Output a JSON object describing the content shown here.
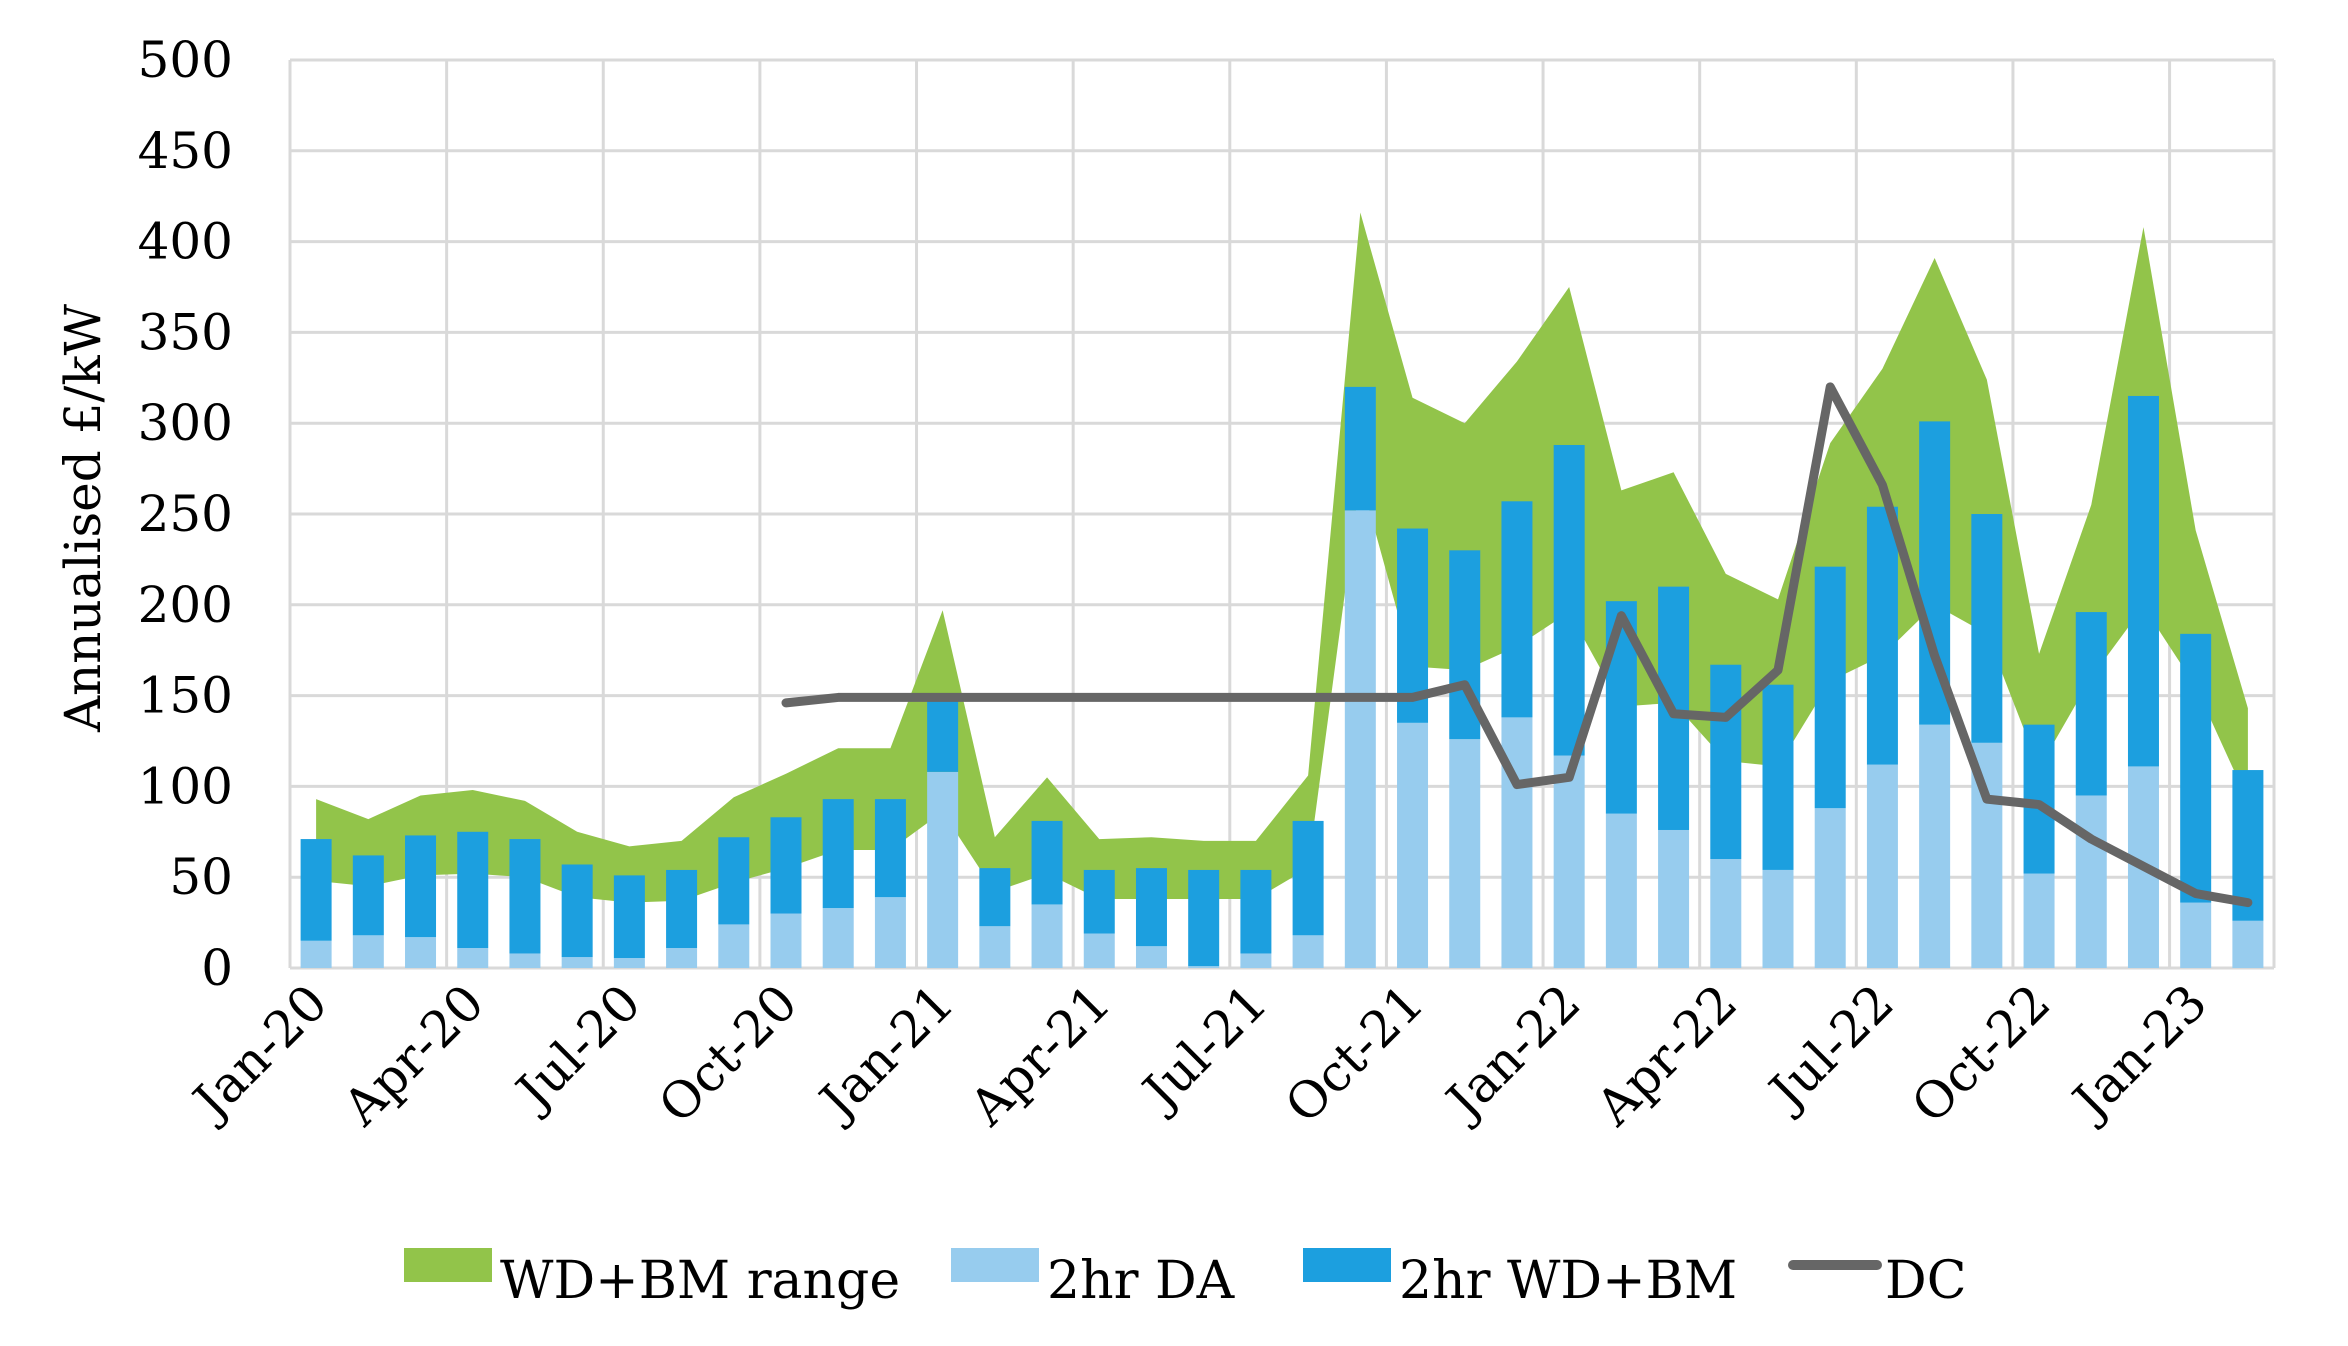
{
  "chart_data": {
    "type": "bar",
    "subtype": "stacked-bar-with-area-range-and-line",
    "title": "",
    "xlabel": "",
    "ylabel": "Annualised £/kW",
    "ylim": [
      0,
      500
    ],
    "yticks": [
      0,
      50,
      100,
      150,
      200,
      250,
      300,
      350,
      400,
      450,
      500
    ],
    "grid": true,
    "legend_position": "bottom",
    "categories": [
      "Jan-20",
      "Feb-20",
      "Mar-20",
      "Apr-20",
      "May-20",
      "Jun-20",
      "Jul-20",
      "Aug-20",
      "Sep-20",
      "Oct-20",
      "Nov-20",
      "Dec-20",
      "Jan-21",
      "Feb-21",
      "Mar-21",
      "Apr-21",
      "May-21",
      "Jun-21",
      "Jul-21",
      "Aug-21",
      "Sep-21",
      "Oct-21",
      "Nov-21",
      "Dec-21",
      "Jan-22",
      "Feb-22",
      "Mar-22",
      "Apr-22",
      "May-22",
      "Jun-22",
      "Jul-22",
      "Aug-22",
      "Sep-22",
      "Oct-22",
      "Nov-22",
      "Dec-22",
      "Jan-23",
      "Feb-23"
    ],
    "x_tick_labels": [
      "Jan-20",
      "Apr-20",
      "Jul-20",
      "Oct-20",
      "Jan-21",
      "Apr-21",
      "Jul-21",
      "Oct-21",
      "Jan-22",
      "Apr-22",
      "Jul-22",
      "Oct-22",
      "Jan-23"
    ],
    "series": [
      {
        "name": "WD+BM range",
        "kind": "area-range",
        "color": "#92C44A",
        "upper": [
          93,
          82,
          95,
          98,
          92,
          75,
          67,
          70,
          94,
          107,
          121,
          121,
          197,
          72,
          105,
          71,
          72,
          70,
          70,
          106,
          416,
          314,
          300,
          334,
          375,
          263,
          273,
          217,
          203,
          289,
          330,
          391,
          324,
          173,
          255,
          408,
          241,
          143
        ],
        "lower": [
          48,
          45,
          51,
          52,
          50,
          39,
          36,
          37,
          47,
          55,
          65,
          65,
          86,
          42,
          52,
          38,
          38,
          38,
          38,
          55,
          270,
          166,
          164,
          177,
          196,
          144,
          146,
          114,
          111,
          158,
          172,
          200,
          184,
          110,
          160,
          199,
          155,
          92
        ]
      },
      {
        "name": "2hr DA",
        "kind": "stacked-bar",
        "color": "#97CCEE",
        "values": [
          15,
          18,
          17,
          11,
          8,
          6,
          5.5,
          11,
          24,
          30,
          33,
          39,
          108,
          23,
          35,
          19,
          12,
          1,
          8,
          18,
          252,
          135,
          126,
          138,
          117,
          85,
          76,
          60,
          54,
          88,
          112,
          134,
          124,
          52,
          95,
          111,
          36,
          26
        ]
      },
      {
        "name": "2hr WD+BM",
        "kind": "stacked-bar",
        "color": "#1C9FDF",
        "totals": [
          71,
          62,
          73,
          75,
          71,
          57,
          51,
          54,
          72,
          83,
          93,
          93,
          151,
          55,
          81,
          54,
          55,
          54,
          54,
          81,
          320,
          242,
          230,
          257,
          288,
          202,
          210,
          167,
          156,
          221,
          254,
          301,
          250,
          134,
          196,
          315,
          184,
          109
        ]
      },
      {
        "name": "DC",
        "kind": "line",
        "color": "#666666",
        "start_category": "Oct-20",
        "values": [
          146,
          149,
          149,
          149,
          149,
          149,
          149,
          149,
          149,
          149,
          149,
          149,
          149,
          156,
          101,
          105,
          194,
          140,
          138,
          164,
          320,
          266,
          172,
          93,
          90,
          71,
          56,
          41,
          36
        ]
      }
    ]
  },
  "legend": {
    "items": [
      {
        "label": "WD+BM range",
        "swatch": "box",
        "color": "#92C44A"
      },
      {
        "label": "2hr DA",
        "swatch": "box",
        "color": "#97CCEE"
      },
      {
        "label": "2hr WD+BM",
        "swatch": "box",
        "color": "#1C9FDF"
      },
      {
        "label": "DC",
        "swatch": "line",
        "color": "#666666"
      }
    ]
  },
  "colors": {
    "gridline": "#D9D9D9",
    "axis": "#D9D9D9",
    "text": "#000000"
  }
}
